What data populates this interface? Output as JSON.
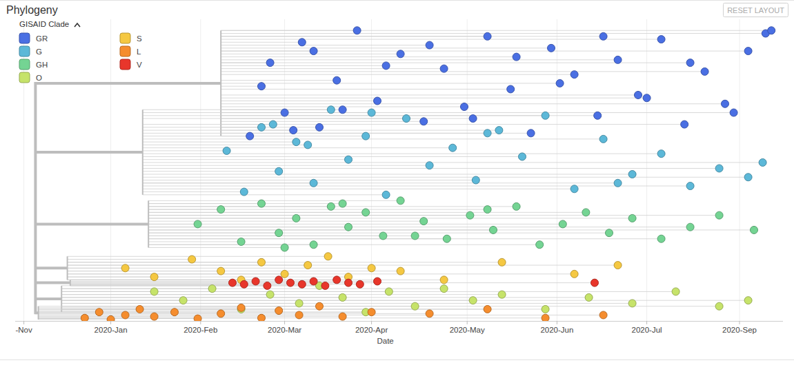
{
  "chart_data": {
    "type": "tree",
    "title": "Phylogeny",
    "legend_title": "GISAID Clade",
    "button": "RESET LAYOUT",
    "x_label": "Date",
    "xlim": [
      -33,
      232
    ],
    "xticks": [
      {
        "value": -30,
        "label": "-Nov"
      },
      {
        "value": 0,
        "label": "2020-Jan"
      },
      {
        "value": 31,
        "label": "2020-Feb"
      },
      {
        "value": 60,
        "label": "2020-Mar"
      },
      {
        "value": 90,
        "label": "2020-Apr"
      },
      {
        "value": 123,
        "label": "2020-May"
      },
      {
        "value": 154,
        "label": "2020-Jun"
      },
      {
        "value": 185,
        "label": "2020-Jul"
      },
      {
        "value": 217,
        "label": "2020-Sep"
      }
    ],
    "ylim": [
      0,
      100
    ],
    "tick_labels": "x",
    "grid": true,
    "legend": "top-left",
    "marker": "circle",
    "root_x": -26,
    "series": [
      {
        "name": "GR",
        "color": "#4a6fe3",
        "root_x": 38,
        "x": [
          48,
          55,
          60,
          66,
          72,
          78,
          85,
          92,
          100,
          108,
          115,
          122,
          130,
          138,
          145,
          152,
          160,
          168,
          175,
          182,
          190,
          198,
          205,
          212,
          220,
          226,
          52,
          63,
          70,
          80,
          95,
          110,
          125,
          140,
          155,
          170,
          185,
          200,
          215,
          228
        ],
        "values": [
          63,
          88,
          71,
          95,
          66,
          82,
          99,
          75,
          91,
          68,
          86,
          73,
          97,
          79,
          64,
          93,
          84,
          70,
          89,
          77,
          96,
          67,
          85,
          74,
          92,
          98,
          80,
          65,
          92,
          72,
          87,
          94,
          69,
          90,
          81,
          97,
          76,
          88,
          71,
          99
        ]
      },
      {
        "name": "G",
        "color": "#5cb8d8",
        "root_x": 11,
        "x": [
          40,
          46,
          52,
          58,
          64,
          70,
          76,
          82,
          88,
          95,
          102,
          110,
          118,
          126,
          134,
          142,
          150,
          160,
          170,
          180,
          190,
          200,
          210,
          220,
          225,
          56,
          68,
          90,
          130,
          175
        ],
        "values": [
          58,
          44,
          66,
          51,
          61,
          47,
          72,
          55,
          63,
          43,
          69,
          53,
          59,
          48,
          65,
          56,
          70,
          45,
          62,
          50,
          57,
          46,
          52,
          49,
          54,
          67,
          60,
          71,
          64,
          47
        ]
      },
      {
        "name": "GH",
        "color": "#74d493",
        "root_x": 13,
        "x": [
          30,
          38,
          45,
          52,
          58,
          64,
          70,
          76,
          82,
          88,
          94,
          100,
          108,
          116,
          124,
          132,
          140,
          148,
          156,
          164,
          172,
          180,
          190,
          200,
          210,
          222,
          60,
          80,
          105,
          130
        ],
        "values": [
          33,
          38,
          27,
          40,
          30,
          35,
          26,
          39,
          32,
          37,
          29,
          41,
          34,
          28,
          36,
          31,
          39,
          26,
          33,
          37,
          30,
          35,
          28,
          32,
          36,
          31,
          25,
          40,
          29,
          38
        ]
      },
      {
        "name": "O",
        "color": "#c6e36a",
        "root_x": -17,
        "x": [
          15,
          25,
          35,
          45,
          55,
          65,
          72,
          80,
          88,
          96,
          105,
          115,
          125,
          135,
          150,
          165,
          180,
          195,
          210,
          220
        ],
        "values": [
          10,
          7,
          11,
          4,
          9,
          6,
          12,
          8,
          3,
          10,
          5,
          11,
          7,
          9,
          4,
          8,
          6,
          10,
          5,
          7
        ]
      },
      {
        "name": "S",
        "color": "#f5c842",
        "root_x": -15,
        "x": [
          5,
          15,
          28,
          38,
          45,
          52,
          60,
          68,
          75,
          82,
          90,
          100,
          115,
          135,
          160,
          175
        ],
        "values": [
          18,
          15,
          21,
          17,
          14,
          20,
          16,
          19,
          22,
          15,
          18,
          17,
          14,
          20,
          16,
          19
        ]
      },
      {
        "name": "L",
        "color": "#f58d2e",
        "root_x": -25,
        "x": [
          -9,
          -4,
          0,
          5,
          10,
          15,
          22,
          30,
          38,
          45,
          52,
          58,
          65,
          72,
          80,
          90,
          110,
          130,
          150,
          170
        ],
        "values": [
          1,
          3,
          0.5,
          2,
          4,
          1.5,
          3,
          0.8,
          2.5,
          4.5,
          1,
          3.5,
          2,
          5,
          1.5,
          3,
          2.5,
          4,
          1,
          2
        ]
      },
      {
        "name": "V",
        "color": "#e8362b",
        "root_x": -14,
        "x": [
          42,
          46,
          50,
          54,
          58,
          62,
          66,
          70,
          74,
          78,
          82,
          86,
          92,
          167
        ],
        "values": [
          13,
          12.5,
          13.5,
          12,
          14,
          13,
          12.5,
          13.5,
          12,
          14,
          13,
          12.5,
          13.5,
          13
        ]
      }
    ]
  }
}
